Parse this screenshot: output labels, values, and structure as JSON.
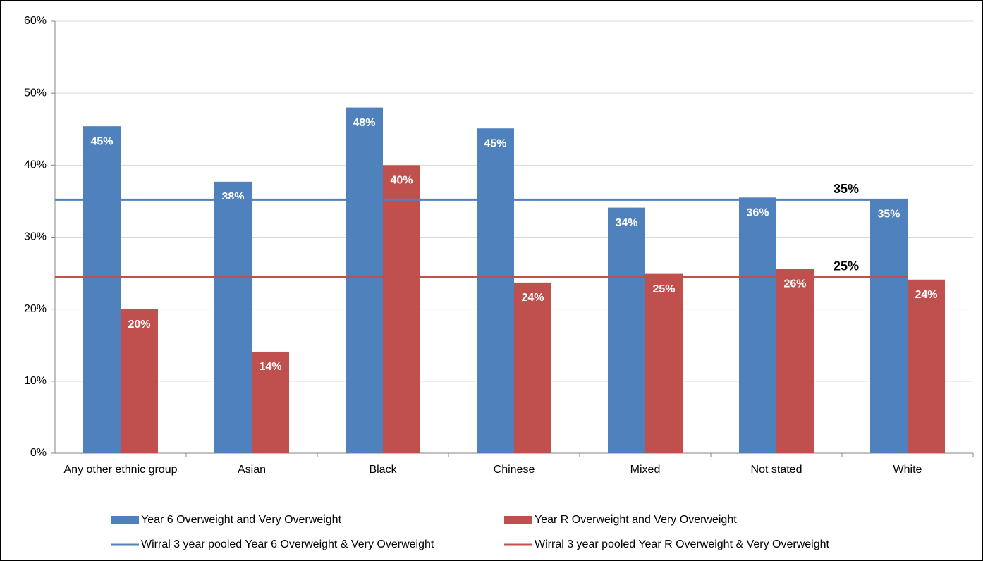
{
  "chart_data": {
    "type": "bar",
    "categories": [
      "Any other ethnic group",
      "Asian",
      "Black",
      "Chinese",
      "Mixed",
      "Not stated",
      "White"
    ],
    "series": [
      {
        "name": "Year 6 Overweight and Very Overweight",
        "color": "#4f81bd",
        "values": [
          45.4,
          37.7,
          48,
          45.1,
          34.1,
          35.5,
          35.3
        ],
        "value_labels": [
          "45%",
          "38%",
          "48%",
          "45%",
          "34%",
          "36%",
          "35%"
        ]
      },
      {
        "name": "Year R Overweight and Very Overweight",
        "color": "#c0504d",
        "values": [
          20,
          14.1,
          40,
          23.7,
          24.9,
          25.6,
          24.1
        ],
        "value_labels": [
          "20%",
          "14%",
          "40%",
          "24%",
          "25%",
          "26%",
          "24%"
        ]
      }
    ],
    "reference_lines": [
      {
        "name": "Wirral 3 year pooled Year 6 Overweight & Very Overweight",
        "color": "#4f81bd",
        "value": 35.2,
        "value_label": "35%"
      },
      {
        "name": "Wirral 3 year pooled Year R Overweight & Very Overweight",
        "color": "#c0504d",
        "value": 24.5,
        "value_label": "25%"
      }
    ],
    "ylim": [
      0,
      60
    ],
    "yticks": [
      {
        "value": 0,
        "label": "0%"
      },
      {
        "value": 10,
        "label": "10%"
      },
      {
        "value": 20,
        "label": "20%"
      },
      {
        "value": 30,
        "label": "30%"
      },
      {
        "value": 40,
        "label": "40%"
      },
      {
        "value": 50,
        "label": "50%"
      },
      {
        "value": 60,
        "label": "60%"
      }
    ],
    "grid": true
  }
}
